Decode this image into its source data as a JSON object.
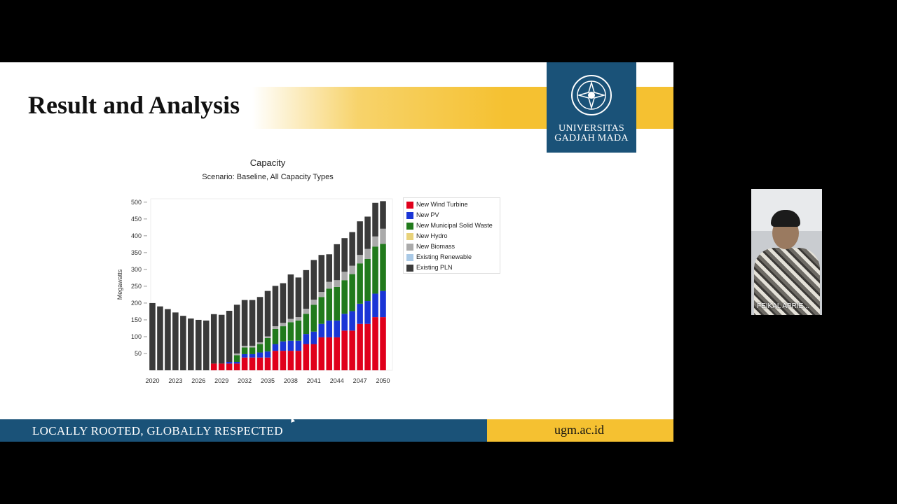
{
  "slide": {
    "title": "Result and Analysis",
    "logo_line1": "UNIVERSITAS",
    "logo_line2": "GADJAH MADA",
    "footer_left": "LOCALLY ROOTED, GLOBALLY RESPECTED",
    "footer_right": "ugm.ac.id"
  },
  "participant": {
    "name": "FEIKAL APRIE..."
  },
  "colors": {
    "New Wind Turbine": "#e0001b",
    "New PV": "#1a35d6",
    "New Municipal Solid Waste": "#217a1c",
    "New Hydro": "#e8d27a",
    "New Biomass": "#aaaaaa",
    "Existing Renewable": "#a9c9e6",
    "Existing PLN": "#3a3a3a"
  },
  "chart_data": {
    "type": "bar",
    "stacked": true,
    "title": "Capacity",
    "subtitle": "Scenario: Baseline, All Capacity Types",
    "ylabel": "Megawatts",
    "xlabel": "",
    "ylim": [
      0,
      510
    ],
    "yticks": [
      50,
      100,
      150,
      200,
      250,
      300,
      350,
      400,
      450,
      500
    ],
    "xtick_labels": [
      "2020",
      "2023",
      "2026",
      "2029",
      "2032",
      "2035",
      "2038",
      "2041",
      "2044",
      "2047",
      "2050"
    ],
    "legend_position": "right",
    "categories": [
      2020,
      2021,
      2022,
      2023,
      2024,
      2025,
      2026,
      2027,
      2028,
      2029,
      2030,
      2031,
      2032,
      2033,
      2034,
      2035,
      2036,
      2037,
      2038,
      2039,
      2040,
      2041,
      2042,
      2043,
      2044,
      2045,
      2046,
      2047,
      2048,
      2049,
      2050
    ],
    "series": [
      {
        "name": "New Wind Turbine",
        "values": [
          0,
          0,
          0,
          0,
          0,
          0,
          0,
          0,
          20,
          20,
          20,
          20,
          38,
          38,
          38,
          38,
          58,
          58,
          58,
          58,
          78,
          78,
          98,
          98,
          98,
          118,
          118,
          138,
          138,
          158,
          158
        ]
      },
      {
        "name": "New PV",
        "values": [
          0,
          0,
          0,
          0,
          0,
          0,
          0,
          0,
          0,
          0,
          5,
          5,
          10,
          10,
          15,
          18,
          20,
          28,
          30,
          30,
          30,
          37,
          40,
          50,
          50,
          50,
          58,
          60,
          68,
          70,
          78
        ]
      },
      {
        "name": "New Municipal Solid Waste",
        "values": [
          0,
          0,
          0,
          0,
          0,
          0,
          0,
          0,
          0,
          0,
          0,
          20,
          20,
          20,
          25,
          40,
          45,
          45,
          55,
          60,
          60,
          80,
          80,
          95,
          100,
          100,
          110,
          120,
          125,
          140,
          140
        ]
      },
      {
        "name": "New Hydro",
        "values": [
          0,
          0,
          0,
          0,
          0,
          0,
          0,
          0,
          0,
          0,
          0,
          0,
          0,
          0,
          0,
          0,
          0,
          0,
          0,
          0,
          0,
          0,
          0,
          0,
          0,
          0,
          0,
          0,
          0,
          0,
          0
        ]
      },
      {
        "name": "New Biomass",
        "values": [
          0,
          0,
          0,
          0,
          0,
          0,
          0,
          0,
          0,
          0,
          0,
          5,
          5,
          5,
          5,
          5,
          8,
          10,
          10,
          10,
          15,
          15,
          15,
          20,
          20,
          25,
          25,
          25,
          30,
          30,
          45
        ]
      },
      {
        "name": "Existing Renewable",
        "values": [
          0,
          0,
          0,
          0,
          0,
          0,
          0,
          0,
          0,
          0,
          0,
          0,
          0,
          0,
          0,
          0,
          0,
          0,
          0,
          0,
          0,
          0,
          0,
          0,
          0,
          0,
          0,
          0,
          0,
          0,
          0
        ]
      },
      {
        "name": "Existing PLN",
        "values": [
          200,
          190,
          182,
          172,
          162,
          154,
          150,
          148,
          147,
          145,
          152,
          145,
          136,
          136,
          135,
          135,
          120,
          118,
          132,
          118,
          115,
          118,
          110,
          82,
          107,
          100,
          100,
          100,
          96,
          100,
          82
        ]
      }
    ]
  }
}
